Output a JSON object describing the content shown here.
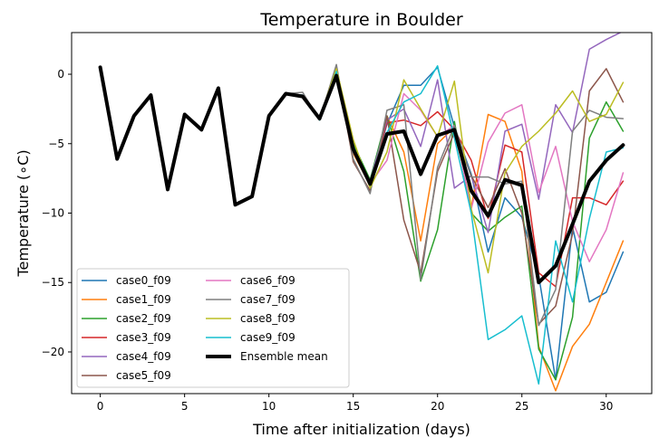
{
  "chart_data": {
    "type": "line",
    "title": "Temperature in Boulder",
    "xlabel": "Time after initialization (days)",
    "ylabel": "Temperature (∘C)",
    "xlim": [
      -1.7,
      32.7
    ],
    "ylim": [
      -23,
      3
    ],
    "xticks": [
      0,
      5,
      10,
      15,
      20,
      25,
      30
    ],
    "yticks": [
      0,
      -5,
      -10,
      -15,
      -20
    ],
    "grid": false,
    "legend_position": "lower-left",
    "legend_columns": 2,
    "series": [
      {
        "name": "case0_f09",
        "color": "#1f77b4",
        "x": [
          11,
          12,
          13,
          14,
          15,
          16,
          17,
          18,
          19,
          20,
          21,
          22,
          23,
          24,
          25,
          26,
          27,
          28,
          29,
          30,
          31
        ],
        "y": [
          -1.4,
          -1.6,
          -3.2,
          0.2,
          -5.3,
          -7.8,
          -3.6,
          -0.8,
          -0.8,
          0.5,
          -3.8,
          -7.2,
          -12.8,
          -8.9,
          -10.3,
          -14.5,
          -22.0,
          -11.0,
          -16.4,
          -15.7,
          -12.8
        ]
      },
      {
        "name": "case1_f09",
        "color": "#ff7f0e",
        "x": [
          11,
          12,
          13,
          14,
          15,
          16,
          17,
          18,
          19,
          20,
          21,
          22,
          23,
          24,
          25,
          26,
          27,
          28,
          29,
          30,
          31
        ],
        "y": [
          -1.4,
          -1.5,
          -3.3,
          0.4,
          -5.7,
          -8.0,
          -3.0,
          -5.6,
          -12.0,
          -5.0,
          -3.8,
          -9.6,
          -2.9,
          -3.4,
          -7.0,
          -19.6,
          -22.8,
          -19.6,
          -18.0,
          -15.0,
          -12.0
        ]
      },
      {
        "name": "case2_f09",
        "color": "#2ca02c",
        "x": [
          11,
          12,
          13,
          14,
          15,
          16,
          17,
          18,
          19,
          20,
          21,
          22,
          23,
          24,
          25,
          26,
          27,
          28,
          29,
          30,
          31
        ],
        "y": [
          -1.4,
          -1.6,
          -3.3,
          0.2,
          -5.0,
          -7.6,
          -3.0,
          -7.0,
          -14.9,
          -11.2,
          -3.4,
          -10.0,
          -11.3,
          -10.3,
          -9.5,
          -19.8,
          -22.0,
          -17.5,
          -4.6,
          -2.0,
          -4.1
        ]
      },
      {
        "name": "case3_f09",
        "color": "#d62728",
        "x": [
          11,
          12,
          13,
          14,
          15,
          16,
          17,
          18,
          19,
          20,
          21,
          22,
          23,
          24,
          25,
          26,
          27,
          28,
          29,
          30,
          31
        ],
        "y": [
          -1.4,
          -1.5,
          -3.2,
          0.1,
          -5.5,
          -7.8,
          -3.5,
          -3.3,
          -3.7,
          -2.7,
          -4.0,
          -6.2,
          -10.4,
          -5.1,
          -5.6,
          -14.3,
          -15.3,
          -8.9,
          -8.9,
          -9.4,
          -7.7
        ]
      },
      {
        "name": "case4_f09",
        "color": "#9467bd",
        "x": [
          11,
          12,
          13,
          14,
          15,
          16,
          17,
          18,
          19,
          20,
          21,
          22,
          23,
          24,
          25,
          26,
          27,
          28,
          29,
          30,
          31
        ],
        "y": [
          -1.4,
          -1.5,
          -3.2,
          0.3,
          -5.4,
          -7.7,
          -3.3,
          -2.5,
          -5.2,
          -0.4,
          -8.2,
          -7.3,
          -11.4,
          -4.1,
          -3.6,
          -9.0,
          -2.2,
          -4.2,
          1.8,
          2.5,
          3.1
        ]
      },
      {
        "name": "case5_f09",
        "color": "#8c564b",
        "x": [
          11,
          12,
          13,
          14,
          15,
          16,
          17,
          18,
          19,
          20,
          21,
          22,
          23,
          24,
          25,
          26,
          27,
          28,
          29,
          30,
          31
        ],
        "y": [
          -1.4,
          -1.5,
          -3.2,
          0.5,
          -6.3,
          -8.4,
          -3.0,
          -10.5,
          -14.3,
          -7.0,
          -4.2,
          -7.3,
          -9.6,
          -6.8,
          -10.0,
          -18.0,
          -16.7,
          -11.5,
          -1.2,
          0.4,
          -2.0
        ]
      },
      {
        "name": "case6_f09",
        "color": "#e377c2",
        "x": [
          11,
          12,
          13,
          14,
          15,
          16,
          17,
          18,
          19,
          20,
          21,
          22,
          23,
          24,
          25,
          26,
          27,
          28,
          29,
          30,
          31
        ],
        "y": [
          -1.4,
          -1.6,
          -3.1,
          0.1,
          -5.6,
          -7.9,
          -6.2,
          -1.4,
          -2.6,
          -4.5,
          -3.7,
          -9.7,
          -4.9,
          -2.8,
          -2.2,
          -8.5,
          -5.2,
          -10.6,
          -13.5,
          -11.2,
          -7.1
        ]
      },
      {
        "name": "case7_f09",
        "color": "#7f7f7f",
        "x": [
          11,
          12,
          13,
          14,
          15,
          16,
          17,
          18,
          19,
          20,
          21,
          22,
          23,
          24,
          25,
          26,
          27,
          28,
          29,
          30,
          31
        ],
        "y": [
          -1.4,
          -1.3,
          -3.3,
          0.7,
          -6.1,
          -8.6,
          -2.6,
          -2.2,
          -14.8,
          -6.7,
          -3.7,
          -7.4,
          -7.4,
          -7.9,
          -7.7,
          -18.1,
          -15.5,
          -4.1,
          -2.6,
          -3.1,
          -3.2
        ]
      },
      {
        "name": "case8_f09",
        "color": "#bcbd22",
        "x": [
          11,
          12,
          13,
          14,
          15,
          16,
          17,
          18,
          19,
          20,
          21,
          22,
          23,
          24,
          25,
          26,
          27,
          28,
          29,
          30,
          31
        ],
        "y": [
          -1.4,
          -1.6,
          -3.2,
          0.4,
          -4.7,
          -8.2,
          -5.6,
          -0.4,
          -2.5,
          -4.5,
          -0.5,
          -9.7,
          -14.3,
          -7.1,
          -5.2,
          -4.1,
          -2.8,
          -1.2,
          -3.4,
          -2.9,
          -0.6
        ]
      },
      {
        "name": "case9_f09",
        "color": "#17becf",
        "x": [
          11,
          12,
          13,
          14,
          15,
          16,
          17,
          18,
          19,
          20,
          21,
          22,
          23,
          24,
          25,
          26,
          27,
          28,
          29,
          30,
          31
        ],
        "y": [
          -1.4,
          -1.5,
          -3.3,
          0.2,
          -5.2,
          -8.0,
          -4.2,
          -2.0,
          -1.4,
          0.6,
          -4.6,
          -10.0,
          -19.1,
          -18.4,
          -17.4,
          -22.3,
          -12.0,
          -16.4,
          -10.4,
          -5.6,
          -5.3
        ]
      },
      {
        "name": "Ensemble mean",
        "color": "#000000",
        "width": 4,
        "x": [
          0,
          1,
          2,
          3,
          4,
          5,
          6,
          7,
          8,
          9,
          10,
          11,
          12,
          13,
          14,
          15,
          16,
          17,
          18,
          19,
          20,
          21,
          22,
          23,
          24,
          25,
          26,
          27,
          28,
          29,
          30,
          31
        ],
        "y": [
          0.5,
          -6.1,
          -3.0,
          -1.5,
          -8.3,
          -2.9,
          -4.0,
          -1.0,
          -9.4,
          -8.8,
          -3.0,
          -1.4,
          -1.6,
          -3.2,
          -0.1,
          -5.4,
          -7.9,
          -4.3,
          -4.1,
          -7.2,
          -4.4,
          -4.0,
          -8.4,
          -10.2,
          -7.6,
          -8.0,
          -15.0,
          -13.8,
          -10.8,
          -7.7,
          -6.2,
          -5.1
        ]
      }
    ]
  }
}
